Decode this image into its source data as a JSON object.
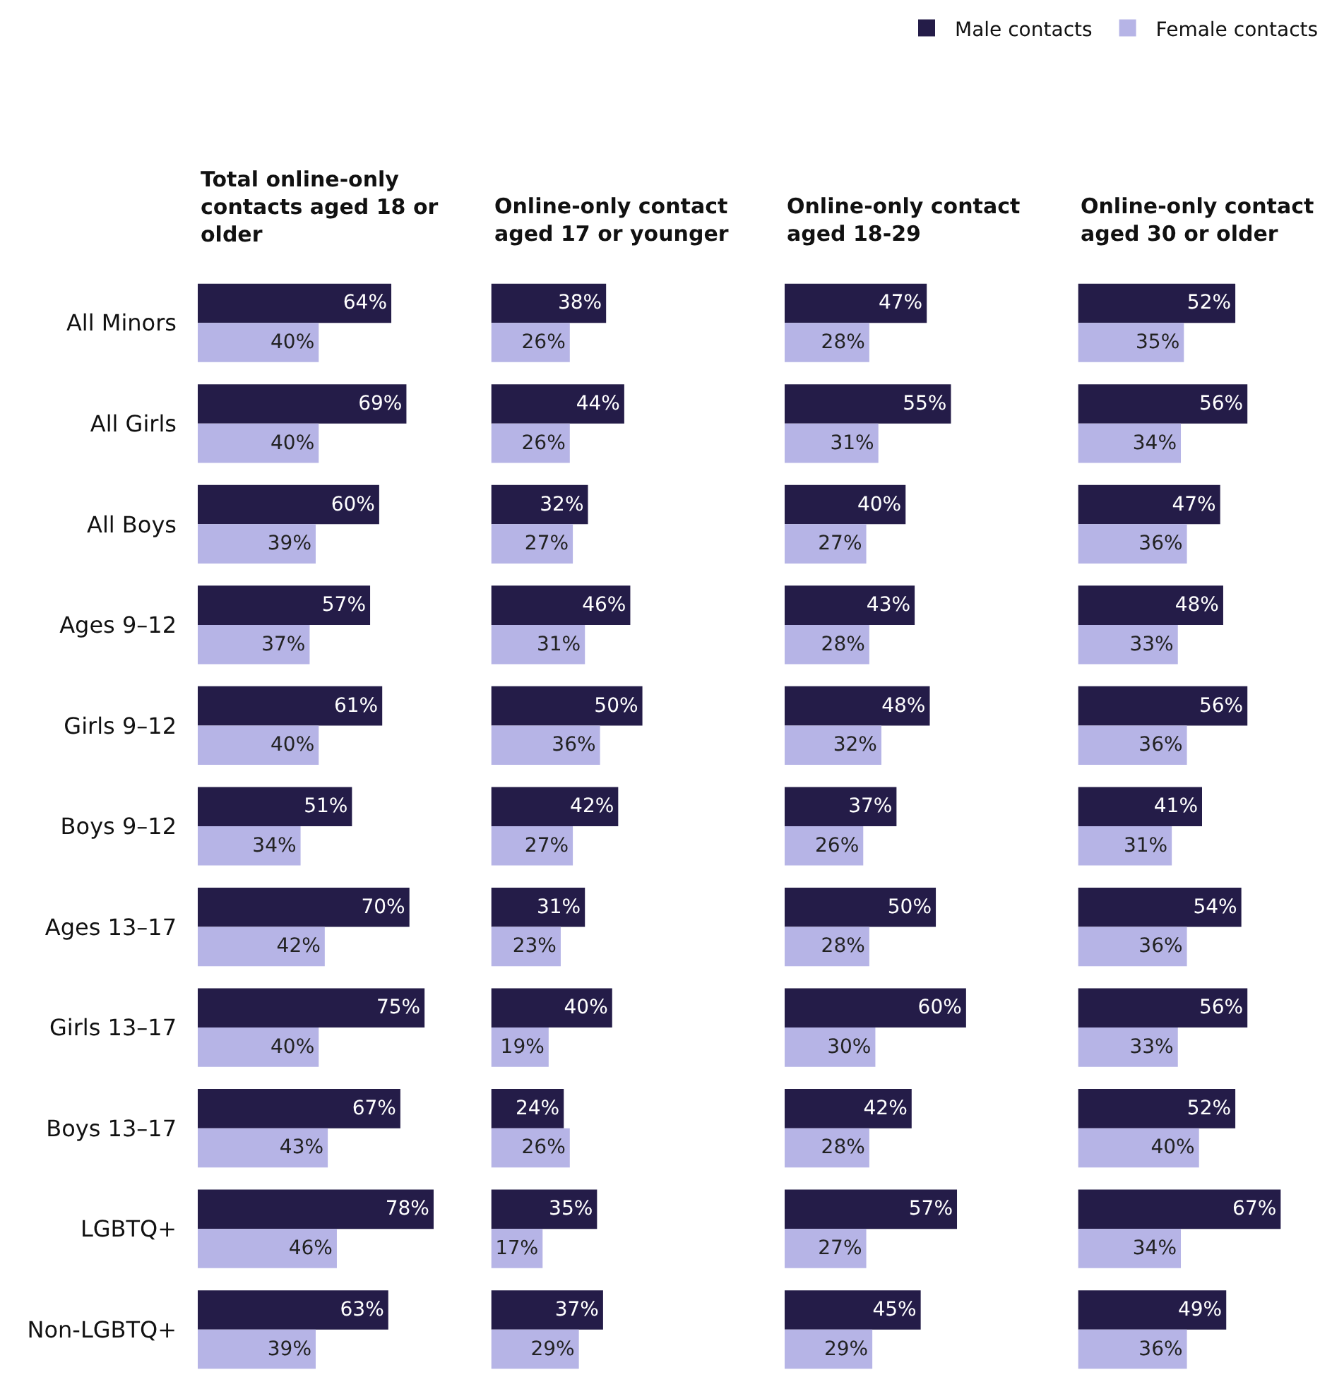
{
  "chart_data": [
    {
      "type": "bar",
      "orientation": "horizontal",
      "title": "Total online-only contacts aged 18 or older",
      "legend": "top right",
      "tick_labels": "y",
      "categories": [
        "All Minors",
        "All Girls",
        "All Boys",
        "Ages 9–12",
        "Girls 9–12",
        "Boys 9–12",
        "Ages 13–17",
        "Girls 13–17",
        "Boys 13–17",
        "LGBTQ+",
        "Non-LGBTQ+"
      ],
      "series": [
        {
          "name": "Male contacts",
          "color": "#241c48",
          "values": [
            64,
            69,
            60,
            57,
            61,
            51,
            70,
            75,
            67,
            78,
            63
          ],
          "value_labels": [
            "64%",
            "69%",
            "60%",
            "57%",
            "61%",
            "51%",
            "70%",
            "75%",
            "67%",
            "78%",
            "63%"
          ]
        },
        {
          "name": "Female contacts",
          "color": "#b6b4e6",
          "values": [
            40,
            40,
            39,
            37,
            40,
            34,
            42,
            40,
            43,
            46,
            39
          ],
          "value_labels": [
            "40%",
            "40%",
            "39%",
            "37%",
            "40%",
            "34%",
            "42%",
            "40%",
            "43%",
            "46%",
            "39%"
          ]
        }
      ]
    },
    {
      "type": "bar",
      "orientation": "horizontal",
      "title": "Online-only contact aged 17 or younger",
      "tick_labels": false,
      "categories": [
        "All Minors",
        "All Girls",
        "All Boys",
        "Ages 9–12",
        "Girls 9–12",
        "Boys 9–12",
        "Ages 13–17",
        "Girls 13–17",
        "Boys 13–17",
        "LGBTQ+",
        "Non-LGBTQ+"
      ],
      "series": [
        {
          "name": "Male contacts",
          "color": "#241c48",
          "values": [
            38,
            44,
            32,
            46,
            50,
            42,
            31,
            40,
            24,
            35,
            37
          ],
          "value_labels": [
            "38%",
            "44%",
            "32%",
            "46%",
            "50%",
            "42%",
            "31%",
            "40%",
            "24%",
            "35%",
            "37%"
          ]
        },
        {
          "name": "Female contacts",
          "color": "#b6b4e6",
          "values": [
            26,
            26,
            27,
            31,
            36,
            27,
            23,
            19,
            26,
            17,
            29
          ],
          "value_labels": [
            "26%",
            "26%",
            "27%",
            "31%",
            "36%",
            "27%",
            "23%",
            "19%",
            "26%",
            "17%",
            "29%"
          ]
        }
      ]
    },
    {
      "type": "bar",
      "orientation": "horizontal",
      "title": "Online-only contact aged 18-29",
      "tick_labels": false,
      "categories": [
        "All Minors",
        "All Girls",
        "All Boys",
        "Ages 9–12",
        "Girls 9–12",
        "Boys 9–12",
        "Ages 13–17",
        "Girls 13–17",
        "Boys 13–17",
        "LGBTQ+",
        "Non-LGBTQ+"
      ],
      "series": [
        {
          "name": "Male contacts",
          "color": "#241c48",
          "values": [
            47,
            55,
            40,
            43,
            48,
            37,
            50,
            60,
            42,
            57,
            45
          ],
          "value_labels": [
            "47%",
            "55%",
            "40%",
            "43%",
            "48%",
            "37%",
            "50%",
            "60%",
            "42%",
            "57%",
            "45%"
          ]
        },
        {
          "name": "Female contacts",
          "color": "#b6b4e6",
          "values": [
            28,
            31,
            27,
            28,
            32,
            26,
            28,
            30,
            28,
            27,
            29
          ],
          "value_labels": [
            "28%",
            "31%",
            "27%",
            "28%",
            "32%",
            "26%",
            "28%",
            "30%",
            "28%",
            "27%",
            "29%"
          ]
        }
      ]
    },
    {
      "type": "bar",
      "orientation": "horizontal",
      "title": "Online-only contact aged 30 or older",
      "tick_labels": false,
      "categories": [
        "All Minors",
        "All Girls",
        "All Boys",
        "Ages 9–12",
        "Girls 9–12",
        "Boys 9–12",
        "Ages 13–17",
        "Girls 13–17",
        "Boys 13–17",
        "LGBTQ+",
        "Non-LGBTQ+"
      ],
      "series": [
        {
          "name": "Male contacts",
          "color": "#241c48",
          "values": [
            52,
            56,
            47,
            48,
            56,
            41,
            54,
            56,
            52,
            67,
            49
          ],
          "value_labels": [
            "52%",
            "56%",
            "47%",
            "48%",
            "56%",
            "41%",
            "54%",
            "56%",
            "52%",
            "67%",
            "49%"
          ]
        },
        {
          "name": "Female contacts",
          "color": "#b6b4e6",
          "values": [
            35,
            34,
            36,
            33,
            36,
            31,
            36,
            33,
            40,
            34,
            36
          ],
          "value_labels": [
            "35%",
            "34%",
            "36%",
            "33%",
            "36%",
            "31%",
            "36%",
            "33%",
            "40%",
            "34%",
            "36%"
          ]
        }
      ]
    }
  ]
}
